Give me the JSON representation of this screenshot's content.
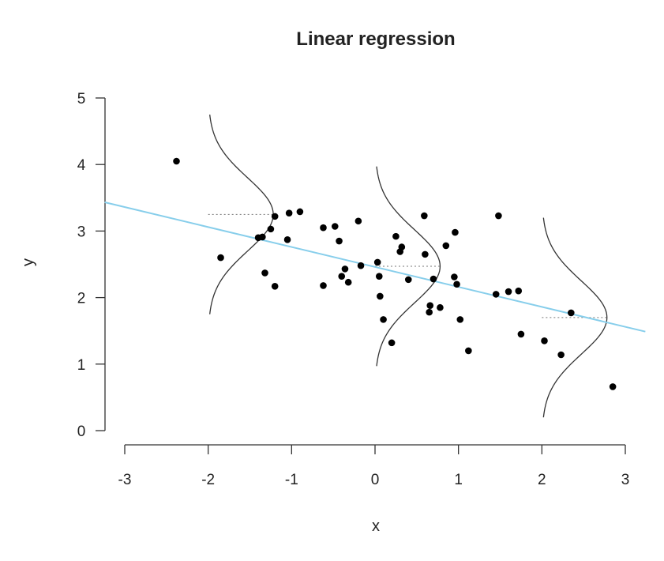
{
  "chart_data": {
    "type": "scatter",
    "title": "Linear regression",
    "xlabel": "x",
    "ylabel": "y",
    "xlim": [
      -3,
      3
    ],
    "ylim": [
      0,
      5
    ],
    "x_ticks": [
      -3,
      -2,
      -1,
      0,
      1,
      2,
      3
    ],
    "y_ticks": [
      0,
      1,
      2,
      3,
      4,
      5
    ],
    "grid": false,
    "regression_line": {
      "intercept": 2.46,
      "slope": -0.3,
      "color": "#87CEEB"
    },
    "density_curves": [
      {
        "x": -2.0,
        "mean_y": 3.25,
        "sd": 0.55,
        "half_span": 1.5
      },
      {
        "x": 0.0,
        "mean_y": 2.47,
        "sd": 0.55,
        "half_span": 1.5
      },
      {
        "x": 2.0,
        "mean_y": 1.7,
        "sd": 0.55,
        "half_span": 1.5
      }
    ],
    "points": [
      {
        "x": -2.38,
        "y": 4.05
      },
      {
        "x": -1.85,
        "y": 2.6
      },
      {
        "x": -1.4,
        "y": 2.9
      },
      {
        "x": -1.35,
        "y": 2.91
      },
      {
        "x": -1.32,
        "y": 2.37
      },
      {
        "x": -1.25,
        "y": 3.03
      },
      {
        "x": -1.2,
        "y": 3.22
      },
      {
        "x": -1.2,
        "y": 2.17
      },
      {
        "x": -1.05,
        "y": 2.87
      },
      {
        "x": -1.03,
        "y": 3.27
      },
      {
        "x": -0.9,
        "y": 3.29
      },
      {
        "x": -0.62,
        "y": 3.05
      },
      {
        "x": -0.62,
        "y": 2.18
      },
      {
        "x": -0.48,
        "y": 3.07
      },
      {
        "x": -0.43,
        "y": 2.85
      },
      {
        "x": -0.4,
        "y": 2.32
      },
      {
        "x": -0.36,
        "y": 2.43
      },
      {
        "x": -0.32,
        "y": 2.23
      },
      {
        "x": -0.2,
        "y": 3.15
      },
      {
        "x": -0.17,
        "y": 2.48
      },
      {
        "x": 0.03,
        "y": 2.53
      },
      {
        "x": 0.05,
        "y": 2.32
      },
      {
        "x": 0.06,
        "y": 2.02
      },
      {
        "x": 0.1,
        "y": 1.67
      },
      {
        "x": 0.2,
        "y": 1.32
      },
      {
        "x": 0.25,
        "y": 2.92
      },
      {
        "x": 0.3,
        "y": 2.69
      },
      {
        "x": 0.32,
        "y": 2.76
      },
      {
        "x": 0.4,
        "y": 2.27
      },
      {
        "x": 0.59,
        "y": 3.23
      },
      {
        "x": 0.6,
        "y": 2.65
      },
      {
        "x": 0.65,
        "y": 1.78
      },
      {
        "x": 0.66,
        "y": 1.88
      },
      {
        "x": 0.7,
        "y": 2.28
      },
      {
        "x": 0.78,
        "y": 1.85
      },
      {
        "x": 0.85,
        "y": 2.78
      },
      {
        "x": 0.95,
        "y": 2.31
      },
      {
        "x": 0.96,
        "y": 2.98
      },
      {
        "x": 0.98,
        "y": 2.2
      },
      {
        "x": 1.02,
        "y": 1.67
      },
      {
        "x": 1.12,
        "y": 1.2
      },
      {
        "x": 1.45,
        "y": 2.05
      },
      {
        "x": 1.48,
        "y": 3.23
      },
      {
        "x": 1.6,
        "y": 2.09
      },
      {
        "x": 1.72,
        "y": 2.1
      },
      {
        "x": 1.75,
        "y": 1.45
      },
      {
        "x": 2.03,
        "y": 1.35
      },
      {
        "x": 2.23,
        "y": 1.14
      },
      {
        "x": 2.35,
        "y": 1.77
      },
      {
        "x": 2.85,
        "y": 0.66
      }
    ]
  }
}
